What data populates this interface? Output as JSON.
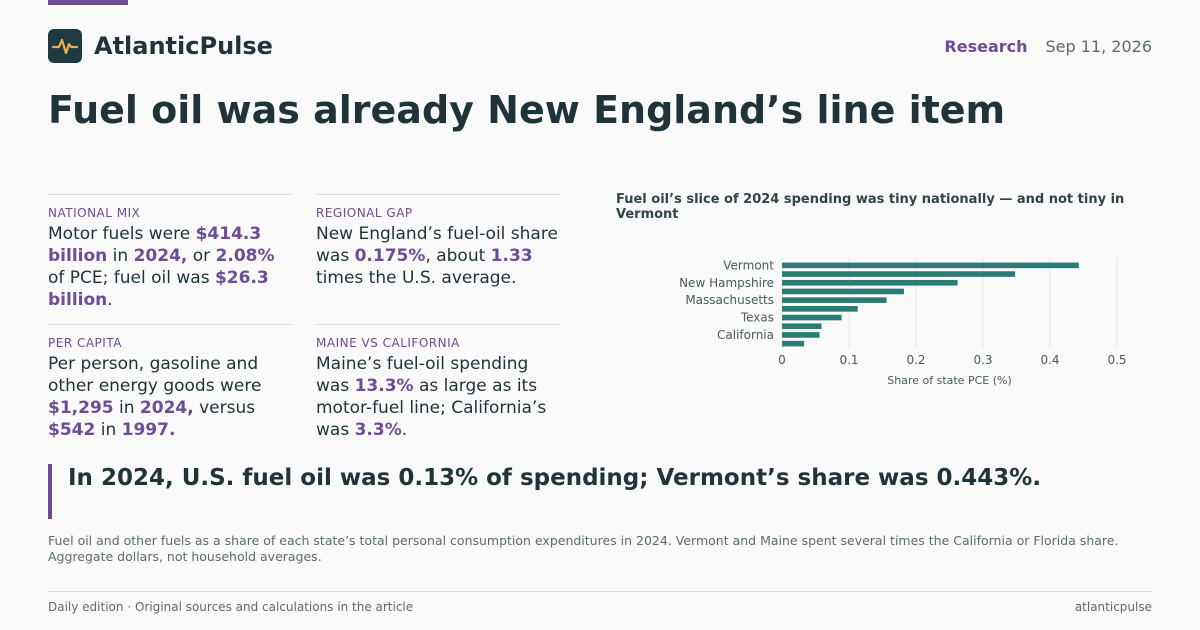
{
  "header": {
    "brand": "AtlanticPulse",
    "logo_icon": "pulse-icon",
    "section": "Research",
    "date": "Sep 11, 2026"
  },
  "headline": "Fuel oil was already New England’s line item",
  "stats": [
    {
      "label": "NATIONAL MIX",
      "parts": [
        {
          "t": "Motor fuels were "
        },
        {
          "t": "$414.3 billion",
          "h": true
        },
        {
          "t": " in "
        },
        {
          "t": "2024,",
          "h": true
        },
        {
          "t": " or "
        },
        {
          "t": "2.08%",
          "h": true
        },
        {
          "t": " of PCE; fuel oil was "
        },
        {
          "t": "$26.3 billion",
          "h": true
        },
        {
          "t": "."
        }
      ]
    },
    {
      "label": "REGIONAL GAP",
      "parts": [
        {
          "t": "New England’s fuel-oil share was "
        },
        {
          "t": "0.175%",
          "h": true
        },
        {
          "t": ", about "
        },
        {
          "t": "1.33",
          "h": true
        },
        {
          "t": " times the U.S. average."
        }
      ]
    },
    {
      "label": "PER CAPITA",
      "parts": [
        {
          "t": "Per person, gasoline and other energy goods were "
        },
        {
          "t": "$1,295",
          "h": true
        },
        {
          "t": " in "
        },
        {
          "t": "2024,",
          "h": true
        },
        {
          "t": " versus "
        },
        {
          "t": "$542",
          "h": true
        },
        {
          "t": " in "
        },
        {
          "t": "1997.",
          "h": true
        }
      ]
    },
    {
      "label": "MAINE VS CALIFORNIA",
      "parts": [
        {
          "t": "Maine’s fuel-oil spending was "
        },
        {
          "t": "13.3%",
          "h": true
        },
        {
          "t": " as large as its motor-fuel line; California’s was "
        },
        {
          "t": "3.3%",
          "h": true
        },
        {
          "t": "."
        }
      ]
    }
  ],
  "chart_data": {
    "type": "bar",
    "orientation": "horizontal",
    "title": "Fuel oil’s slice of 2024 spending was tiny nationally — and not tiny in Vermont",
    "xlabel": "Share of state PCE (%)",
    "ylabel": "",
    "xlim": [
      0,
      0.5
    ],
    "xticks": [
      0,
      0.1,
      0.2,
      0.3,
      0.4,
      0.5
    ],
    "grid": "vertical",
    "bar_color": "#2a7c75",
    "categories": [
      "Vermont",
      "",
      "New Hampshire",
      "",
      "Massachusetts",
      "",
      "Texas",
      "",
      "California",
      ""
    ],
    "values": [
      0.443,
      0.348,
      0.262,
      0.182,
      0.156,
      0.113,
      0.089,
      0.059,
      0.056,
      0.033
    ]
  },
  "callout": "In 2024, U.S. fuel oil was 0.13% of spending; Vermont’s share was 0.443%.",
  "caption": "Fuel oil and other fuels as a share of each state’s total personal consumption expenditures in 2024. Vermont and Maine spent several times the California or Florida share. Aggregate dollars, not household averages.",
  "footer": {
    "left": "Daily edition · Original sources and calculations in the article",
    "right": "atlanticpulse"
  },
  "colors": {
    "accent": "#6d4d93",
    "bar": "#2a7c75",
    "text": "#1f3338"
  }
}
